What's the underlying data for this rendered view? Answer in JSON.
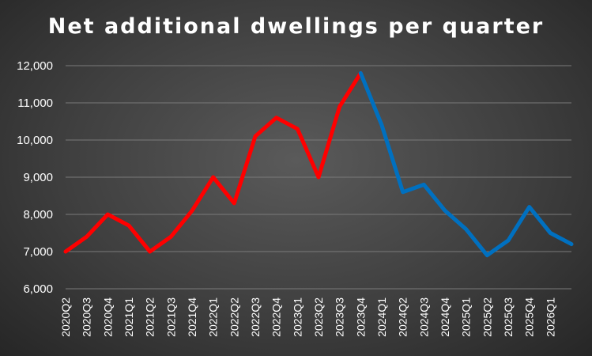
{
  "chart_data": {
    "type": "line",
    "title": "Net additional dwellings per quarter",
    "xlabel": "",
    "ylabel": "",
    "ylim": [
      6000,
      12000
    ],
    "y_ticks": [
      6000,
      7000,
      8000,
      9000,
      10000,
      11000,
      12000
    ],
    "y_tick_labels": [
      "6,000",
      "7,000",
      "8,000",
      "9,000",
      "10,000",
      "11,000",
      "12,000"
    ],
    "grid": true,
    "legend": "none",
    "categories": [
      "2020Q2",
      "2020Q3",
      "2020Q4",
      "2021Q1",
      "2021Q2",
      "2021Q3",
      "2021Q4",
      "2022Q1",
      "2022Q2",
      "2022Q3",
      "2022Q4",
      "2023Q1",
      "2023Q2",
      "2023Q3",
      "2023Q4",
      "2024Q1",
      "2024Q2",
      "2024Q3",
      "2024Q4",
      "2025Q1",
      "2025Q2",
      "2025Q3",
      "2025Q4",
      "2026Q1",
      ""
    ],
    "series": [
      {
        "color": "#ff0000",
        "values": [
          7000,
          7400,
          8000,
          7700,
          7000,
          7400,
          8100,
          9000,
          8300,
          10100,
          10600,
          10300,
          9000,
          10900,
          11800,
          null,
          null,
          null,
          null,
          null,
          null,
          null,
          null,
          null,
          null
        ]
      },
      {
        "color": "#0070c0",
        "values": [
          null,
          null,
          null,
          null,
          null,
          null,
          null,
          null,
          null,
          null,
          null,
          null,
          null,
          null,
          11800,
          10400,
          8600,
          8800,
          8100,
          7600,
          6900,
          7300,
          8200,
          7500,
          7200
        ]
      }
    ]
  }
}
